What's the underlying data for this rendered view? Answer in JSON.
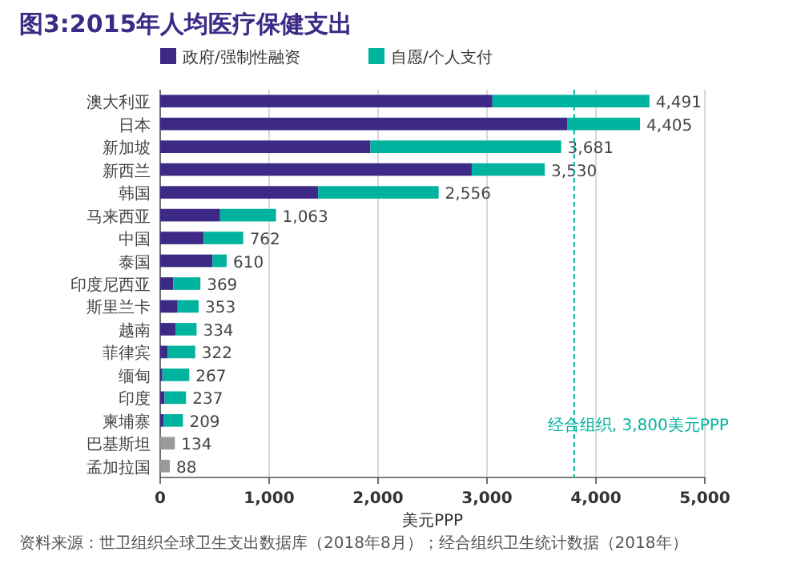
{
  "chart_data": {
    "type": "bar",
    "orientation": "horizontal",
    "stacked": true,
    "title": "图3:2015年人均医疗保健支出",
    "categories": [
      "澳大利亚",
      "日本",
      "新加坡",
      "新西兰",
      "韩国",
      "马来西亚",
      "中国",
      "泰国",
      "印度尼西亚",
      "斯里兰卡",
      "越南",
      "菲律宾",
      "缅甸",
      "印度",
      "柬埔寨",
      "巴基斯坦",
      "孟加拉国"
    ],
    "series": [
      {
        "name": "政府/强制性融资",
        "color": "#3d2a86",
        "values": [
          3050,
          3740,
          1930,
          2860,
          1450,
          550,
          400,
          480,
          120,
          160,
          140,
          70,
          20,
          40,
          30,
          null,
          null
        ]
      },
      {
        "name": "自愿/个人支付",
        "color": "#00b39f",
        "values": [
          1441,
          665,
          1751,
          670,
          1106,
          513,
          362,
          130,
          249,
          193,
          194,
          252,
          247,
          197,
          179,
          null,
          null
        ]
      },
      {
        "color": "#9a9a9a",
        "values": [
          null,
          null,
          null,
          null,
          null,
          null,
          null,
          null,
          null,
          null,
          null,
          null,
          null,
          null,
          null,
          134,
          88
        ]
      }
    ],
    "totals": [
      "4,491",
      "4,405",
      "3,681",
      "3,530",
      "2,556",
      "1,063",
      "762",
      "610",
      "369",
      "353",
      "334",
      "322",
      "267",
      "237",
      "209",
      "134",
      "88"
    ],
    "xlim": [
      0,
      5000
    ],
    "xticks": [
      0,
      {
        "value": 1000,
        "label": "1,000"
      },
      {
        "value": 2000,
        "label": "2,000"
      },
      {
        "value": 3000,
        "label": "3,000"
      },
      {
        "value": 4000,
        "label": "4,000"
      },
      {
        "value": 5000,
        "label": "5,000"
      }
    ],
    "xlabel": "美元PPP",
    "grid": "x",
    "legend": "top left",
    "ref_lines": [
      {
        "axis": "x",
        "value": 3800,
        "label": "经合组织, 3,800美元PPP",
        "color": "#00b39f",
        "line_style": "dashed"
      }
    ],
    "annotations": [
      "资料来源：世卫组织全球卫生支出数据库（2018年8月）；经合组织卫生统计数据（2018年）"
    ]
  }
}
